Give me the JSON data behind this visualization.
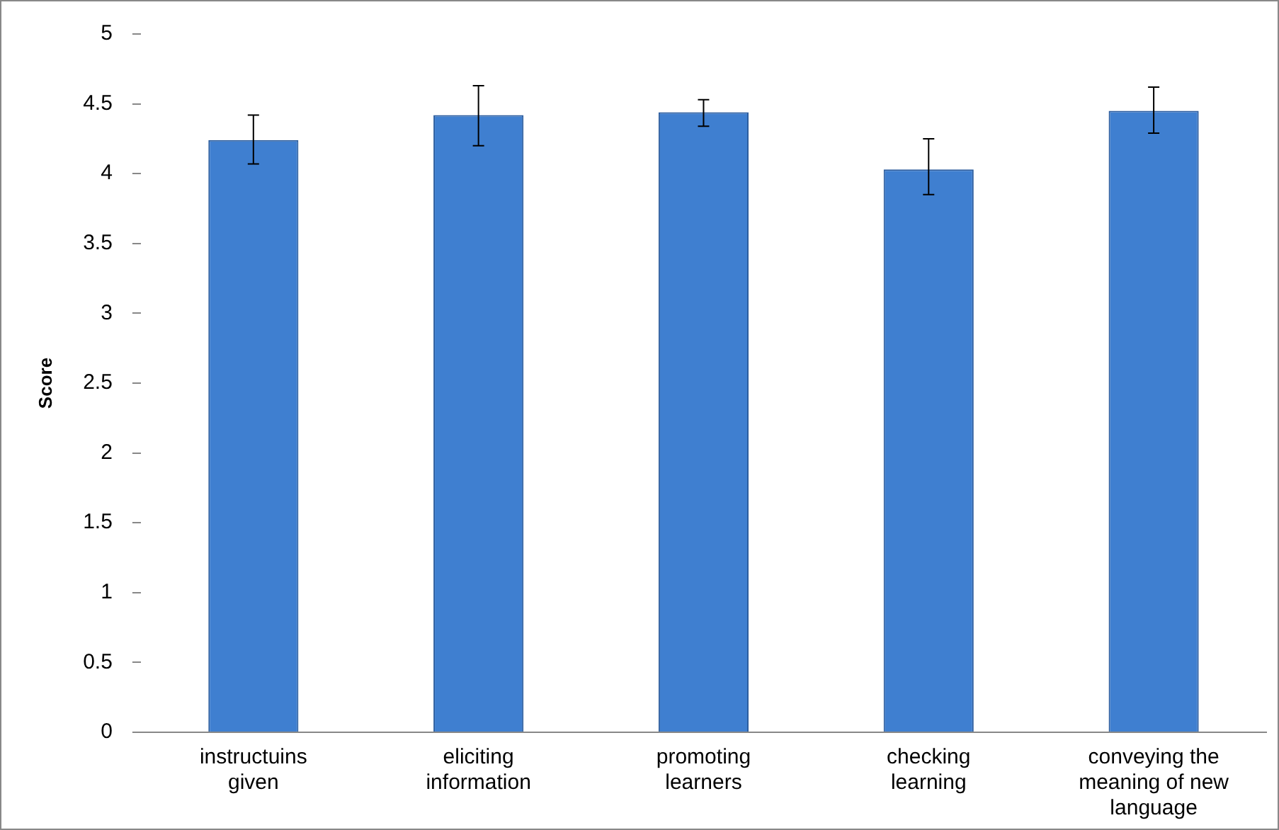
{
  "chart_data": {
    "type": "bar",
    "ylabel": "Score",
    "categories": [
      "instructuins given",
      "eliciting information",
      "promoting learners",
      "checking learning",
      "conveying the meaning of new language"
    ],
    "values": [
      4.24,
      4.42,
      4.44,
      4.03,
      4.45
    ],
    "errors": [
      [
        4.07,
        4.42
      ],
      [
        4.2,
        4.63
      ],
      [
        4.34,
        4.53
      ],
      [
        3.85,
        4.25
      ],
      [
        4.29,
        4.62
      ]
    ],
    "color": "#3f7fd0",
    "ylim": [
      0,
      5
    ],
    "yticks": [
      0,
      0.5,
      1,
      1.5,
      2,
      2.5,
      3,
      3.5,
      4,
      4.5,
      5
    ],
    "grid": false,
    "legend": false
  }
}
